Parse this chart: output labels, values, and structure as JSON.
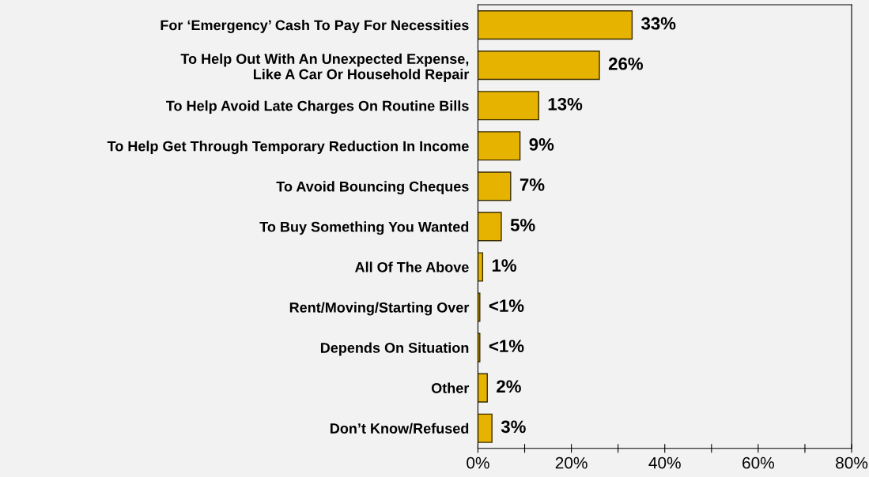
{
  "chart_data": {
    "type": "bar",
    "orientation": "horizontal",
    "categories": [
      "For ‘Emergency’ Cash To Pay For Necessities",
      "To Help Out With An Unexpected Expense,\nLike A Car Or Household Repair",
      "To Help Avoid Late Charges On Routine Bills",
      "To Help Get Through Temporary Reduction In Income",
      "To Avoid Bouncing Cheques",
      "To Buy Something You Wanted",
      "All Of The Above",
      "Rent/Moving/Starting Over",
      "Depends On Situation",
      "Other",
      "Don’t Know/Refused"
    ],
    "values": [
      33,
      26,
      13,
      9,
      7,
      5,
      1,
      0.4,
      0.4,
      2,
      3
    ],
    "value_labels": [
      "33%",
      "26%",
      "13%",
      "9%",
      "7%",
      "5%",
      "1%",
      "<1%",
      "<1%",
      "2%",
      "3%"
    ],
    "color": "#e6b400",
    "xlim": [
      0,
      80
    ],
    "xticks": [
      {
        "value": 0,
        "label": "0%"
      },
      {
        "value": 10,
        "label": null
      },
      {
        "value": 20,
        "label": "20%"
      },
      {
        "value": 30,
        "label": null
      },
      {
        "value": 40,
        "label": "40%"
      },
      {
        "value": 50,
        "label": null
      },
      {
        "value": 60,
        "label": "60%"
      },
      {
        "value": 70,
        "label": null
      },
      {
        "value": 80,
        "label": "80%"
      }
    ],
    "grid": false,
    "legend": false
  }
}
